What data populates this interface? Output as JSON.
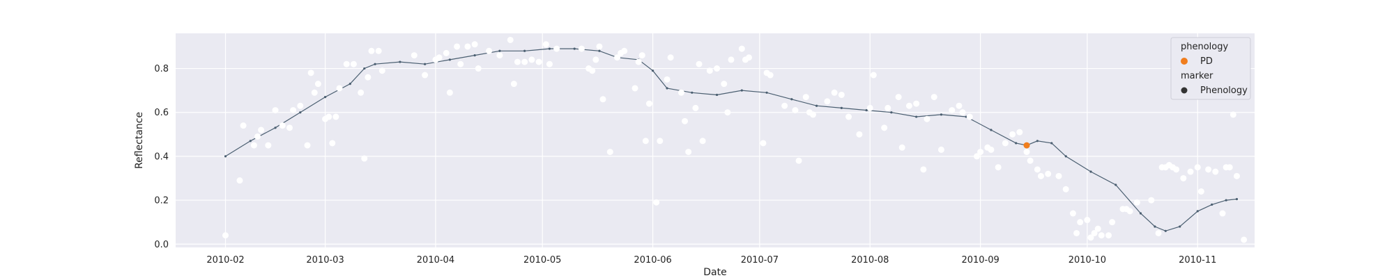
{
  "chart_data": {
    "type": "scatter",
    "xlabel": "Date",
    "ylabel": "Reflectance",
    "xlim": [
      "2010-01-18",
      "2010-11-17"
    ],
    "ylim": [
      -0.015,
      0.96
    ],
    "x_ticks": [
      "2010-02",
      "2010-03",
      "2010-04",
      "2010-05",
      "2010-06",
      "2010-07",
      "2010-08",
      "2010-09",
      "2010-10",
      "2010-11"
    ],
    "y_ticks": [
      0.0,
      0.2,
      0.4,
      0.6,
      0.8
    ],
    "y_tick_labels": [
      "0.0",
      "0.2",
      "0.4",
      "0.6",
      "0.8"
    ],
    "grid": true,
    "legend": {
      "placement": "top-right",
      "sections": [
        {
          "title": "phenology",
          "entries": [
            {
              "label": "PD",
              "color": "#f07d1d"
            }
          ]
        },
        {
          "title": "marker",
          "entries": [
            {
              "label": "Phenology",
              "color": "#333333"
            }
          ]
        }
      ]
    },
    "colors": {
      "background": "#eaeaf2",
      "grid": "#ffffff",
      "points": "#ffffff",
      "curve": "#4a5e70",
      "pd": "#f07d1d"
    },
    "observations": [
      [
        "2010-02-01",
        0.04
      ],
      [
        "2010-02-05",
        0.29
      ],
      [
        "2010-02-06",
        0.54
      ],
      [
        "2010-02-09",
        0.45
      ],
      [
        "2010-02-10",
        0.49
      ],
      [
        "2010-02-11",
        0.52
      ],
      [
        "2010-02-13",
        0.45
      ],
      [
        "2010-02-15",
        0.61
      ],
      [
        "2010-02-17",
        0.54
      ],
      [
        "2010-02-19",
        0.53
      ],
      [
        "2010-02-20",
        0.61
      ],
      [
        "2010-02-22",
        0.63
      ],
      [
        "2010-02-24",
        0.45
      ],
      [
        "2010-02-25",
        0.78
      ],
      [
        "2010-02-26",
        0.69
      ],
      [
        "2010-02-27",
        0.73
      ],
      [
        "2010-03-01",
        0.57
      ],
      [
        "2010-03-02",
        0.58
      ],
      [
        "2010-03-03",
        0.46
      ],
      [
        "2010-03-04",
        0.58
      ],
      [
        "2010-03-05",
        0.71
      ],
      [
        "2010-03-07",
        0.82
      ],
      [
        "2010-03-09",
        0.82
      ],
      [
        "2010-03-11",
        0.69
      ],
      [
        "2010-03-12",
        0.39
      ],
      [
        "2010-03-13",
        0.76
      ],
      [
        "2010-03-14",
        0.88
      ],
      [
        "2010-03-16",
        0.88
      ],
      [
        "2010-03-17",
        0.79
      ],
      [
        "2010-03-26",
        0.86
      ],
      [
        "2010-03-29",
        0.77
      ],
      [
        "2010-04-01",
        0.84
      ],
      [
        "2010-04-02",
        0.85
      ],
      [
        "2010-04-04",
        0.87
      ],
      [
        "2010-04-05",
        0.69
      ],
      [
        "2010-04-07",
        0.9
      ],
      [
        "2010-04-08",
        0.82
      ],
      [
        "2010-04-10",
        0.9
      ],
      [
        "2010-04-12",
        0.91
      ],
      [
        "2010-04-13",
        0.8
      ],
      [
        "2010-04-16",
        0.88
      ],
      [
        "2010-04-19",
        0.86
      ],
      [
        "2010-04-22",
        0.93
      ],
      [
        "2010-04-23",
        0.73
      ],
      [
        "2010-04-24",
        0.83
      ],
      [
        "2010-04-26",
        0.83
      ],
      [
        "2010-04-28",
        0.84
      ],
      [
        "2010-04-30",
        0.83
      ],
      [
        "2010-05-02",
        0.91
      ],
      [
        "2010-05-03",
        0.82
      ],
      [
        "2010-05-05",
        0.89
      ],
      [
        "2010-05-12",
        0.89
      ],
      [
        "2010-05-14",
        0.8
      ],
      [
        "2010-05-15",
        0.79
      ],
      [
        "2010-05-16",
        0.84
      ],
      [
        "2010-05-17",
        0.9
      ],
      [
        "2010-05-18",
        0.66
      ],
      [
        "2010-05-20",
        0.42
      ],
      [
        "2010-05-22",
        0.85
      ],
      [
        "2010-05-23",
        0.87
      ],
      [
        "2010-05-24",
        0.88
      ],
      [
        "2010-05-27",
        0.71
      ],
      [
        "2010-05-28",
        0.83
      ],
      [
        "2010-05-29",
        0.86
      ],
      [
        "2010-05-30",
        0.47
      ],
      [
        "2010-05-31",
        0.64
      ],
      [
        "2010-06-02",
        0.19
      ],
      [
        "2010-06-03",
        0.47
      ],
      [
        "2010-06-05",
        0.75
      ],
      [
        "2010-06-06",
        0.85
      ],
      [
        "2010-06-09",
        0.69
      ],
      [
        "2010-06-10",
        0.56
      ],
      [
        "2010-06-11",
        0.42
      ],
      [
        "2010-06-13",
        0.62
      ],
      [
        "2010-06-14",
        0.82
      ],
      [
        "2010-06-15",
        0.47
      ],
      [
        "2010-06-17",
        0.79
      ],
      [
        "2010-06-19",
        0.8
      ],
      [
        "2010-06-21",
        0.73
      ],
      [
        "2010-06-22",
        0.6
      ],
      [
        "2010-06-23",
        0.84
      ],
      [
        "2010-06-26",
        0.89
      ],
      [
        "2010-06-27",
        0.84
      ],
      [
        "2010-06-28",
        0.85
      ],
      [
        "2010-07-02",
        0.46
      ],
      [
        "2010-07-03",
        0.78
      ],
      [
        "2010-07-04",
        0.77
      ],
      [
        "2010-07-08",
        0.63
      ],
      [
        "2010-07-11",
        0.61
      ],
      [
        "2010-07-12",
        0.38
      ],
      [
        "2010-07-14",
        0.67
      ],
      [
        "2010-07-15",
        0.6
      ],
      [
        "2010-07-16",
        0.59
      ],
      [
        "2010-07-20",
        0.65
      ],
      [
        "2010-07-22",
        0.69
      ],
      [
        "2010-07-24",
        0.68
      ],
      [
        "2010-07-26",
        0.58
      ],
      [
        "2010-07-29",
        0.5
      ],
      [
        "2010-08-01",
        0.62
      ],
      [
        "2010-08-02",
        0.77
      ],
      [
        "2010-08-05",
        0.53
      ],
      [
        "2010-08-06",
        0.62
      ],
      [
        "2010-08-09",
        0.67
      ],
      [
        "2010-08-10",
        0.44
      ],
      [
        "2010-08-12",
        0.63
      ],
      [
        "2010-08-14",
        0.64
      ],
      [
        "2010-08-16",
        0.34
      ],
      [
        "2010-08-17",
        0.57
      ],
      [
        "2010-08-19",
        0.67
      ],
      [
        "2010-08-21",
        0.43
      ],
      [
        "2010-08-24",
        0.61
      ],
      [
        "2010-08-26",
        0.63
      ],
      [
        "2010-08-27",
        0.6
      ],
      [
        "2010-08-29",
        0.58
      ],
      [
        "2010-08-31",
        0.4
      ],
      [
        "2010-09-01",
        0.42
      ],
      [
        "2010-09-03",
        0.44
      ],
      [
        "2010-09-04",
        0.43
      ],
      [
        "2010-09-06",
        0.35
      ],
      [
        "2010-09-08",
        0.46
      ],
      [
        "2010-09-10",
        0.5
      ],
      [
        "2010-09-12",
        0.51
      ],
      [
        "2010-09-14",
        0.42
      ],
      [
        "2010-09-15",
        0.38
      ],
      [
        "2010-09-17",
        0.34
      ],
      [
        "2010-09-18",
        0.31
      ],
      [
        "2010-09-20",
        0.32
      ],
      [
        "2010-09-23",
        0.31
      ],
      [
        "2010-09-25",
        0.25
      ],
      [
        "2010-09-27",
        0.14
      ],
      [
        "2010-09-28",
        0.05
      ],
      [
        "2010-09-29",
        0.1
      ],
      [
        "2010-10-01",
        0.11
      ],
      [
        "2010-10-02",
        0.03
      ],
      [
        "2010-10-03",
        0.05
      ],
      [
        "2010-10-04",
        0.07
      ],
      [
        "2010-10-05",
        0.04
      ],
      [
        "2010-10-07",
        0.04
      ],
      [
        "2010-10-08",
        0.1
      ],
      [
        "2010-10-11",
        0.16
      ],
      [
        "2010-10-12",
        0.16
      ],
      [
        "2010-10-13",
        0.15
      ],
      [
        "2010-10-15",
        0.19
      ],
      [
        "2010-10-19",
        0.2
      ],
      [
        "2010-10-21",
        0.05
      ],
      [
        "2010-10-22",
        0.35
      ],
      [
        "2010-10-23",
        0.35
      ],
      [
        "2010-10-24",
        0.36
      ],
      [
        "2010-10-25",
        0.35
      ],
      [
        "2010-10-26",
        0.34
      ],
      [
        "2010-10-28",
        0.3
      ],
      [
        "2010-10-30",
        0.33
      ],
      [
        "2010-11-01",
        0.35
      ],
      [
        "2010-11-02",
        0.24
      ],
      [
        "2010-11-04",
        0.34
      ],
      [
        "2010-11-06",
        0.33
      ],
      [
        "2010-11-08",
        0.14
      ],
      [
        "2010-11-09",
        0.35
      ],
      [
        "2010-11-10",
        0.35
      ],
      [
        "2010-11-11",
        0.59
      ],
      [
        "2010-11-12",
        0.31
      ],
      [
        "2010-11-14",
        0.02
      ]
    ],
    "curve": [
      [
        "2010-02-01",
        0.4
      ],
      [
        "2010-02-08",
        0.47
      ],
      [
        "2010-02-15",
        0.53
      ],
      [
        "2010-02-22",
        0.6
      ],
      [
        "2010-03-01",
        0.67
      ],
      [
        "2010-03-08",
        0.73
      ],
      [
        "2010-03-12",
        0.8
      ],
      [
        "2010-03-15",
        0.82
      ],
      [
        "2010-03-22",
        0.83
      ],
      [
        "2010-03-29",
        0.82
      ],
      [
        "2010-04-05",
        0.84
      ],
      [
        "2010-04-12",
        0.86
      ],
      [
        "2010-04-19",
        0.88
      ],
      [
        "2010-04-26",
        0.88
      ],
      [
        "2010-05-03",
        0.89
      ],
      [
        "2010-05-10",
        0.89
      ],
      [
        "2010-05-17",
        0.88
      ],
      [
        "2010-05-22",
        0.85
      ],
      [
        "2010-05-28",
        0.84
      ],
      [
        "2010-06-01",
        0.79
      ],
      [
        "2010-06-05",
        0.71
      ],
      [
        "2010-06-12",
        0.69
      ],
      [
        "2010-06-19",
        0.68
      ],
      [
        "2010-06-26",
        0.7
      ],
      [
        "2010-07-03",
        0.69
      ],
      [
        "2010-07-10",
        0.66
      ],
      [
        "2010-07-17",
        0.63
      ],
      [
        "2010-07-24",
        0.62
      ],
      [
        "2010-07-31",
        0.61
      ],
      [
        "2010-08-07",
        0.6
      ],
      [
        "2010-08-14",
        0.58
      ],
      [
        "2010-08-21",
        0.59
      ],
      [
        "2010-08-28",
        0.58
      ],
      [
        "2010-09-04",
        0.52
      ],
      [
        "2010-09-11",
        0.46
      ],
      [
        "2010-09-14",
        0.45
      ],
      [
        "2010-09-17",
        0.47
      ],
      [
        "2010-09-21",
        0.46
      ],
      [
        "2010-09-25",
        0.4
      ],
      [
        "2010-10-02",
        0.33
      ],
      [
        "2010-10-09",
        0.27
      ],
      [
        "2010-10-16",
        0.14
      ],
      [
        "2010-10-20",
        0.08
      ],
      [
        "2010-10-23",
        0.06
      ],
      [
        "2010-10-27",
        0.08
      ],
      [
        "2010-11-01",
        0.15
      ],
      [
        "2010-11-05",
        0.18
      ],
      [
        "2010-11-09",
        0.2
      ],
      [
        "2010-11-12",
        0.205
      ]
    ],
    "pd_point": [
      "2010-09-14",
      0.45
    ]
  }
}
